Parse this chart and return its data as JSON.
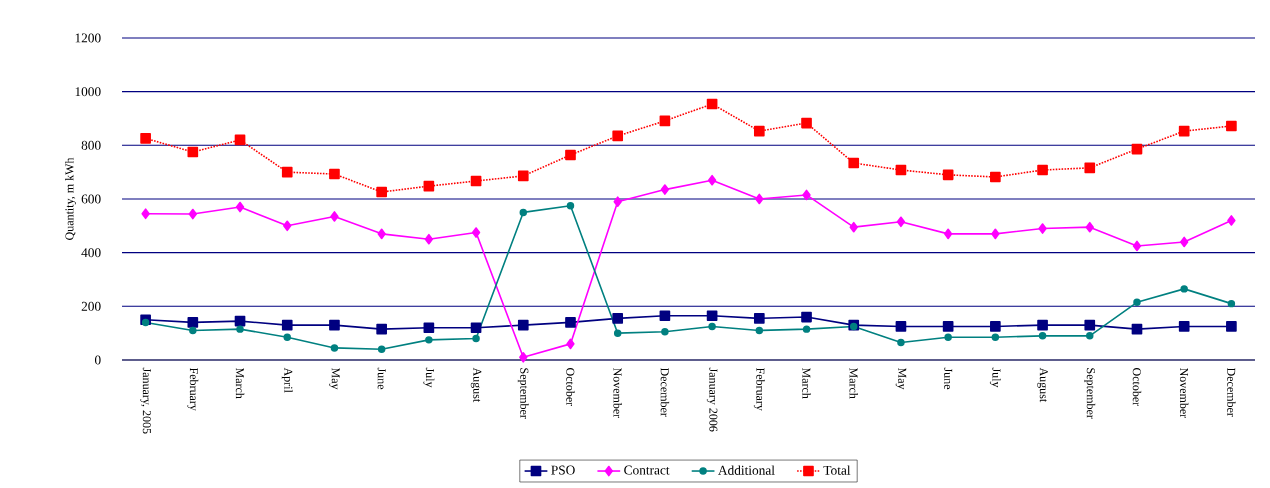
{
  "chart_data": {
    "type": "line",
    "ylabel": "Quantity, m kWh",
    "categories": [
      "January, 2005",
      "February",
      "March",
      "April",
      "May",
      "June",
      "July",
      "August",
      "September",
      "October",
      "November",
      "December",
      "January 2006",
      "February",
      "March",
      "March",
      "May",
      "June",
      "July",
      "August",
      "September",
      "October",
      "November",
      "December"
    ],
    "series": [
      {
        "name": "PSO",
        "color": "#000080",
        "marker": "square",
        "values": [
          150,
          140,
          145,
          130,
          130,
          115,
          120,
          120,
          130,
          140,
          155,
          165,
          165,
          155,
          160,
          130,
          125,
          125,
          125,
          130,
          130,
          115,
          125,
          125
        ]
      },
      {
        "name": "Contract",
        "color": "#ff00ff",
        "marker": "diamond",
        "values": [
          545,
          544,
          570,
          500,
          535,
          470,
          450,
          475,
          10,
          60,
          590,
          635,
          670,
          600,
          615,
          495,
          515,
          470,
          470,
          490,
          495,
          425,
          440,
          520
        ]
      },
      {
        "name": "Additional",
        "color": "#008080",
        "marker": "circle",
        "values": [
          140,
          110,
          115,
          85,
          45,
          40,
          75,
          80,
          550,
          575,
          100,
          105,
          125,
          110,
          115,
          125,
          65,
          85,
          85,
          90,
          90,
          215,
          265,
          210
        ]
      },
      {
        "name": "Total",
        "color": "#ff0000",
        "marker": "square",
        "line_style": "dotted",
        "values": [
          826,
          775,
          820,
          700,
          693,
          626,
          648,
          667,
          686,
          764,
          835,
          891,
          954,
          853,
          883,
          734,
          708,
          690,
          682,
          708,
          716,
          786,
          853,
          872
        ]
      }
    ],
    "ylim": [
      0,
      1200
    ],
    "yticks": [
      0,
      200,
      400,
      600,
      800,
      1000,
      1200
    ],
    "grid": "y",
    "legend": "bottom"
  }
}
